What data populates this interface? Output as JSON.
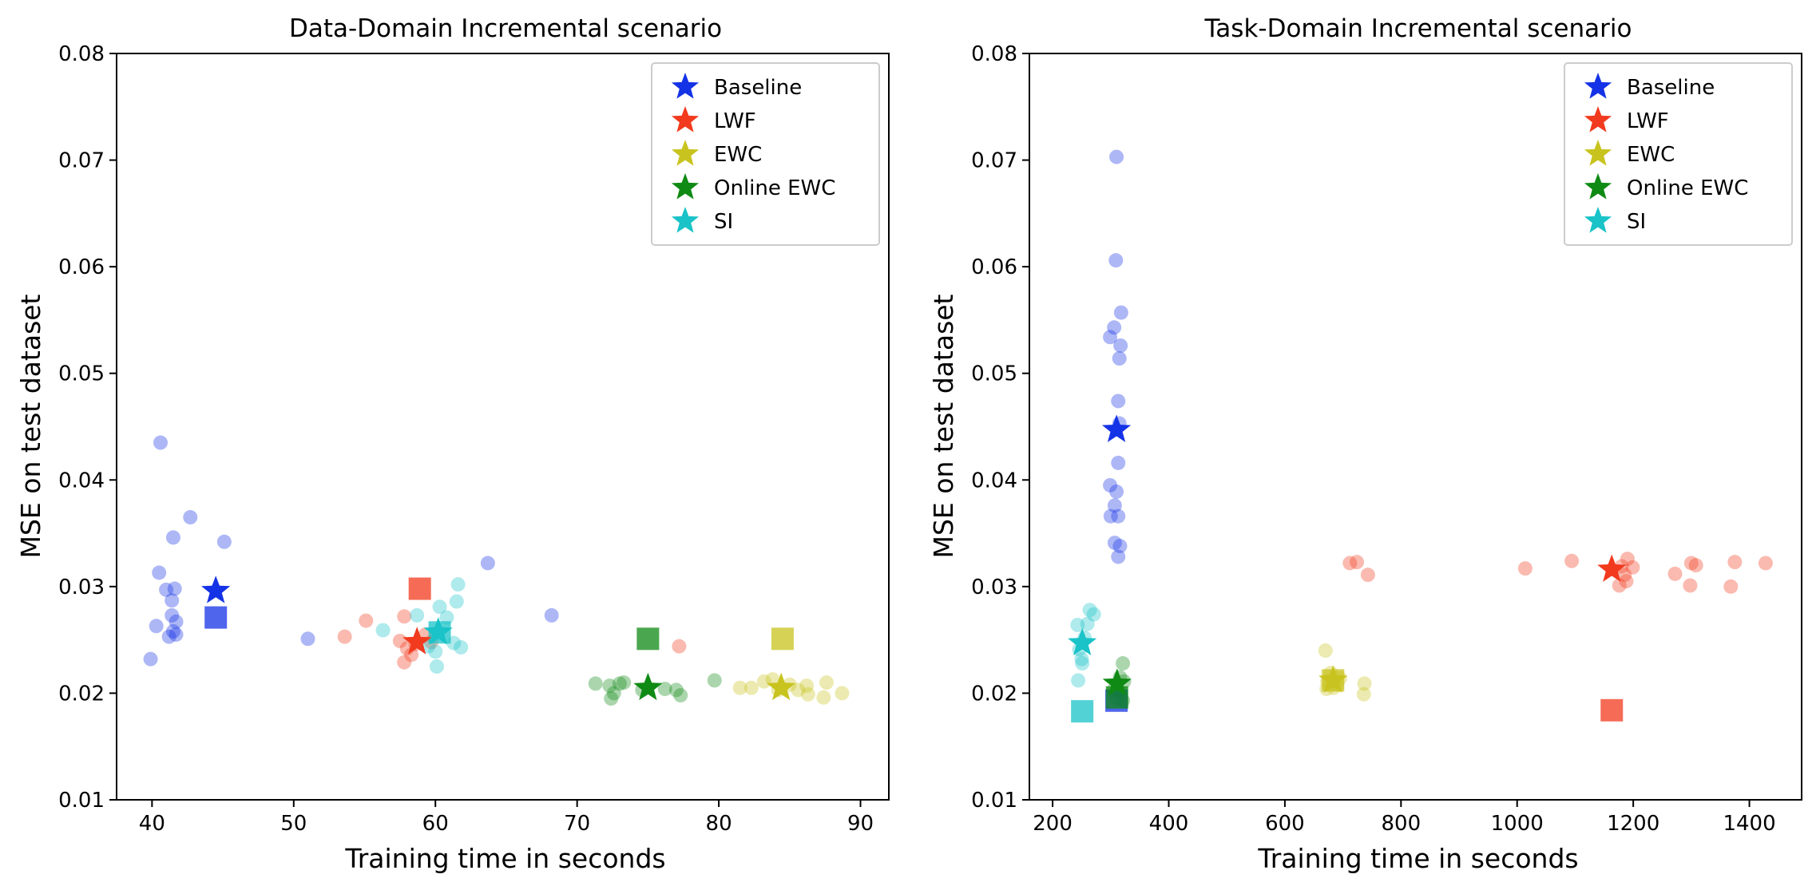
{
  "colors": {
    "Baseline": "#1432e6",
    "LWF": "#f23a1e",
    "EWC": "#c8c31e",
    "Online EWC": "#0f8a14",
    "SI": "#19c3c8"
  },
  "chart_data": [
    {
      "type": "scatter",
      "title": "Data-Domain Incremental scenario",
      "xlabel": "Training time in seconds",
      "ylabel": "MSE on test dataset",
      "xlim": [
        37.5,
        92
      ],
      "ylim": [
        0.01,
        0.08
      ],
      "xticks": [
        40,
        50,
        60,
        70,
        80,
        90
      ],
      "xtick_labels": [
        "40",
        "50",
        "60",
        "70",
        "80",
        "90"
      ],
      "yticks": [
        0.01,
        0.02,
        0.03,
        0.04,
        0.05,
        0.06,
        0.07,
        0.08
      ],
      "ytick_labels": [
        "0.01",
        "0.02",
        "0.03",
        "0.04",
        "0.05",
        "0.06",
        "0.07",
        "0.08"
      ],
      "legend_location": "upper right",
      "series": [
        {
          "name": "Baseline",
          "mean": [
            44.5,
            0.0296
          ],
          "square": [
            44.5,
            0.0271
          ],
          "runs": [
            [
              40.6,
              0.0435
            ],
            [
              42.7,
              0.0365
            ],
            [
              41.5,
              0.0346
            ],
            [
              45.1,
              0.0342
            ],
            [
              40.5,
              0.0313
            ],
            [
              41.0,
              0.0297
            ],
            [
              41.6,
              0.0298
            ],
            [
              41.4,
              0.0287
            ],
            [
              41.4,
              0.0273
            ],
            [
              41.7,
              0.0267
            ],
            [
              40.3,
              0.0263
            ],
            [
              41.2,
              0.0253
            ],
            [
              41.7,
              0.0255
            ],
            [
              41.5,
              0.0258
            ],
            [
              39.9,
              0.0232
            ],
            [
              51.0,
              0.0251
            ],
            [
              63.7,
              0.0322
            ],
            [
              68.2,
              0.0273
            ]
          ]
        },
        {
          "name": "LWF",
          "mean": [
            58.7,
            0.0248
          ],
          "square": [
            58.9,
            0.0298
          ],
          "runs": [
            [
              53.6,
              0.0253
            ],
            [
              55.1,
              0.0268
            ],
            [
              57.8,
              0.0272
            ],
            [
              57.5,
              0.0249
            ],
            [
              58.0,
              0.0242
            ],
            [
              58.3,
              0.0236
            ],
            [
              57.8,
              0.0229
            ],
            [
              59.3,
              0.0255
            ],
            [
              59.7,
              0.0248
            ],
            [
              58.6,
              0.0246
            ],
            [
              77.2,
              0.0244
            ]
          ]
        },
        {
          "name": "EWC",
          "mean": [
            84.4,
            0.0205
          ],
          "square": [
            84.5,
            0.0251
          ],
          "runs": [
            [
              81.5,
              0.0205
            ],
            [
              82.3,
              0.0205
            ],
            [
              83.2,
              0.0211
            ],
            [
              83.8,
              0.0213
            ],
            [
              84.2,
              0.0203
            ],
            [
              85.0,
              0.0208
            ],
            [
              85.6,
              0.0203
            ],
            [
              86.2,
              0.0207
            ],
            [
              86.3,
              0.0199
            ],
            [
              87.6,
              0.021
            ],
            [
              87.4,
              0.0196
            ],
            [
              88.7,
              0.02
            ]
          ]
        },
        {
          "name": "Online EWC",
          "mean": [
            75.0,
            0.0205
          ],
          "square": [
            75.0,
            0.0251
          ],
          "runs": [
            [
              71.3,
              0.0209
            ],
            [
              72.3,
              0.0207
            ],
            [
              72.6,
              0.02
            ],
            [
              72.4,
              0.0195
            ],
            [
              73.0,
              0.0209
            ],
            [
              73.3,
              0.021
            ],
            [
              74.6,
              0.0203
            ],
            [
              76.2,
              0.0204
            ],
            [
              77.0,
              0.0203
            ],
            [
              77.3,
              0.0198
            ],
            [
              79.7,
              0.0212
            ]
          ]
        },
        {
          "name": "SI",
          "mean": [
            60.2,
            0.0257
          ],
          "square": [
            60.3,
            0.0257
          ],
          "runs": [
            [
              56.3,
              0.0259
            ],
            [
              58.7,
              0.0273
            ],
            [
              60.3,
              0.0281
            ],
            [
              61.6,
              0.0302
            ],
            [
              61.5,
              0.0286
            ],
            [
              60.8,
              0.0271
            ],
            [
              61.3,
              0.0247
            ],
            [
              61.8,
              0.0243
            ],
            [
              60.0,
              0.0239
            ],
            [
              60.1,
              0.0225
            ],
            [
              59.5,
              0.0244
            ]
          ]
        }
      ]
    },
    {
      "type": "scatter",
      "title": "Task-Domain Incremental scenario",
      "xlabel": "Training time in seconds",
      "ylabel": "MSE on test dataset",
      "xlim": [
        160,
        1490
      ],
      "ylim": [
        0.01,
        0.08
      ],
      "xticks": [
        200,
        400,
        600,
        800,
        1000,
        1200,
        1400
      ],
      "xtick_labels": [
        "200",
        "400",
        "600",
        "800",
        "1000",
        "1200",
        "1400"
      ],
      "yticks": [
        0.01,
        0.02,
        0.03,
        0.04,
        0.05,
        0.06,
        0.07,
        0.08
      ],
      "ytick_labels": [
        "0.01",
        "0.02",
        "0.03",
        "0.04",
        "0.05",
        "0.06",
        "0.07",
        "0.08"
      ],
      "legend_location": "upper right",
      "series": [
        {
          "name": "Baseline",
          "mean": [
            310,
            0.0447
          ],
          "square": [
            310,
            0.0193
          ],
          "runs": [
            [
              310,
              0.0703
            ],
            [
              309,
              0.0606
            ],
            [
              318,
              0.0557
            ],
            [
              306,
              0.0543
            ],
            [
              299,
              0.0534
            ],
            [
              317,
              0.0526
            ],
            [
              315,
              0.0514
            ],
            [
              313,
              0.0474
            ],
            [
              315,
              0.0453
            ],
            [
              313,
              0.0416
            ],
            [
              299,
              0.0395
            ],
            [
              310,
              0.0389
            ],
            [
              307,
              0.0376
            ],
            [
              300,
              0.0366
            ],
            [
              313,
              0.0366
            ],
            [
              307,
              0.0341
            ],
            [
              316,
              0.0338
            ],
            [
              313,
              0.0328
            ]
          ]
        },
        {
          "name": "LWF",
          "mean": [
            1163,
            0.0316
          ],
          "square": [
            1163,
            0.0184
          ],
          "runs": [
            [
              712,
              0.0322
            ],
            [
              724,
              0.0323
            ],
            [
              743,
              0.0311
            ],
            [
              1014,
              0.0317
            ],
            [
              1094,
              0.0324
            ],
            [
              1180,
              0.0319
            ],
            [
              1185,
              0.0311
            ],
            [
              1190,
              0.0326
            ],
            [
              1199,
              0.0318
            ],
            [
              1188,
              0.0305
            ],
            [
              1176,
              0.0301
            ],
            [
              1272,
              0.0312
            ],
            [
              1300,
              0.0322
            ],
            [
              1308,
              0.032
            ],
            [
              1298,
              0.0301
            ],
            [
              1375,
              0.0323
            ],
            [
              1368,
              0.03
            ],
            [
              1428,
              0.0322
            ]
          ]
        },
        {
          "name": "EWC",
          "mean": [
            683,
            0.0212
          ],
          "square": [
            683,
            0.0212
          ],
          "runs": [
            [
              670,
              0.024
            ],
            [
              673,
              0.0211
            ],
            [
              679,
              0.0219
            ],
            [
              690,
              0.0208
            ],
            [
              695,
              0.0214
            ],
            [
              672,
              0.0204
            ],
            [
              684,
              0.0205
            ],
            [
              737,
              0.0209
            ],
            [
              736,
              0.0199
            ]
          ]
        },
        {
          "name": "Online EWC",
          "mean": [
            311,
            0.0209
          ],
          "square": [
            311,
            0.0196
          ],
          "runs": [
            [
              321,
              0.0228
            ],
            [
              316,
              0.0215
            ],
            [
              305,
              0.0203
            ],
            [
              323,
              0.0211
            ],
            [
              317,
              0.0201
            ],
            [
              311,
              0.0195
            ],
            [
              321,
              0.0193
            ]
          ]
        },
        {
          "name": "SI",
          "mean": [
            251,
            0.0247
          ],
          "square": [
            251,
            0.0183
          ],
          "runs": [
            [
              264,
              0.0278
            ],
            [
              271,
              0.0274
            ],
            [
              243,
              0.0264
            ],
            [
              260,
              0.0265
            ],
            [
              255,
              0.0252
            ],
            [
              246,
              0.0241
            ],
            [
              250,
              0.0232
            ],
            [
              251,
              0.0228
            ],
            [
              244,
              0.0212
            ]
          ]
        }
      ]
    }
  ]
}
